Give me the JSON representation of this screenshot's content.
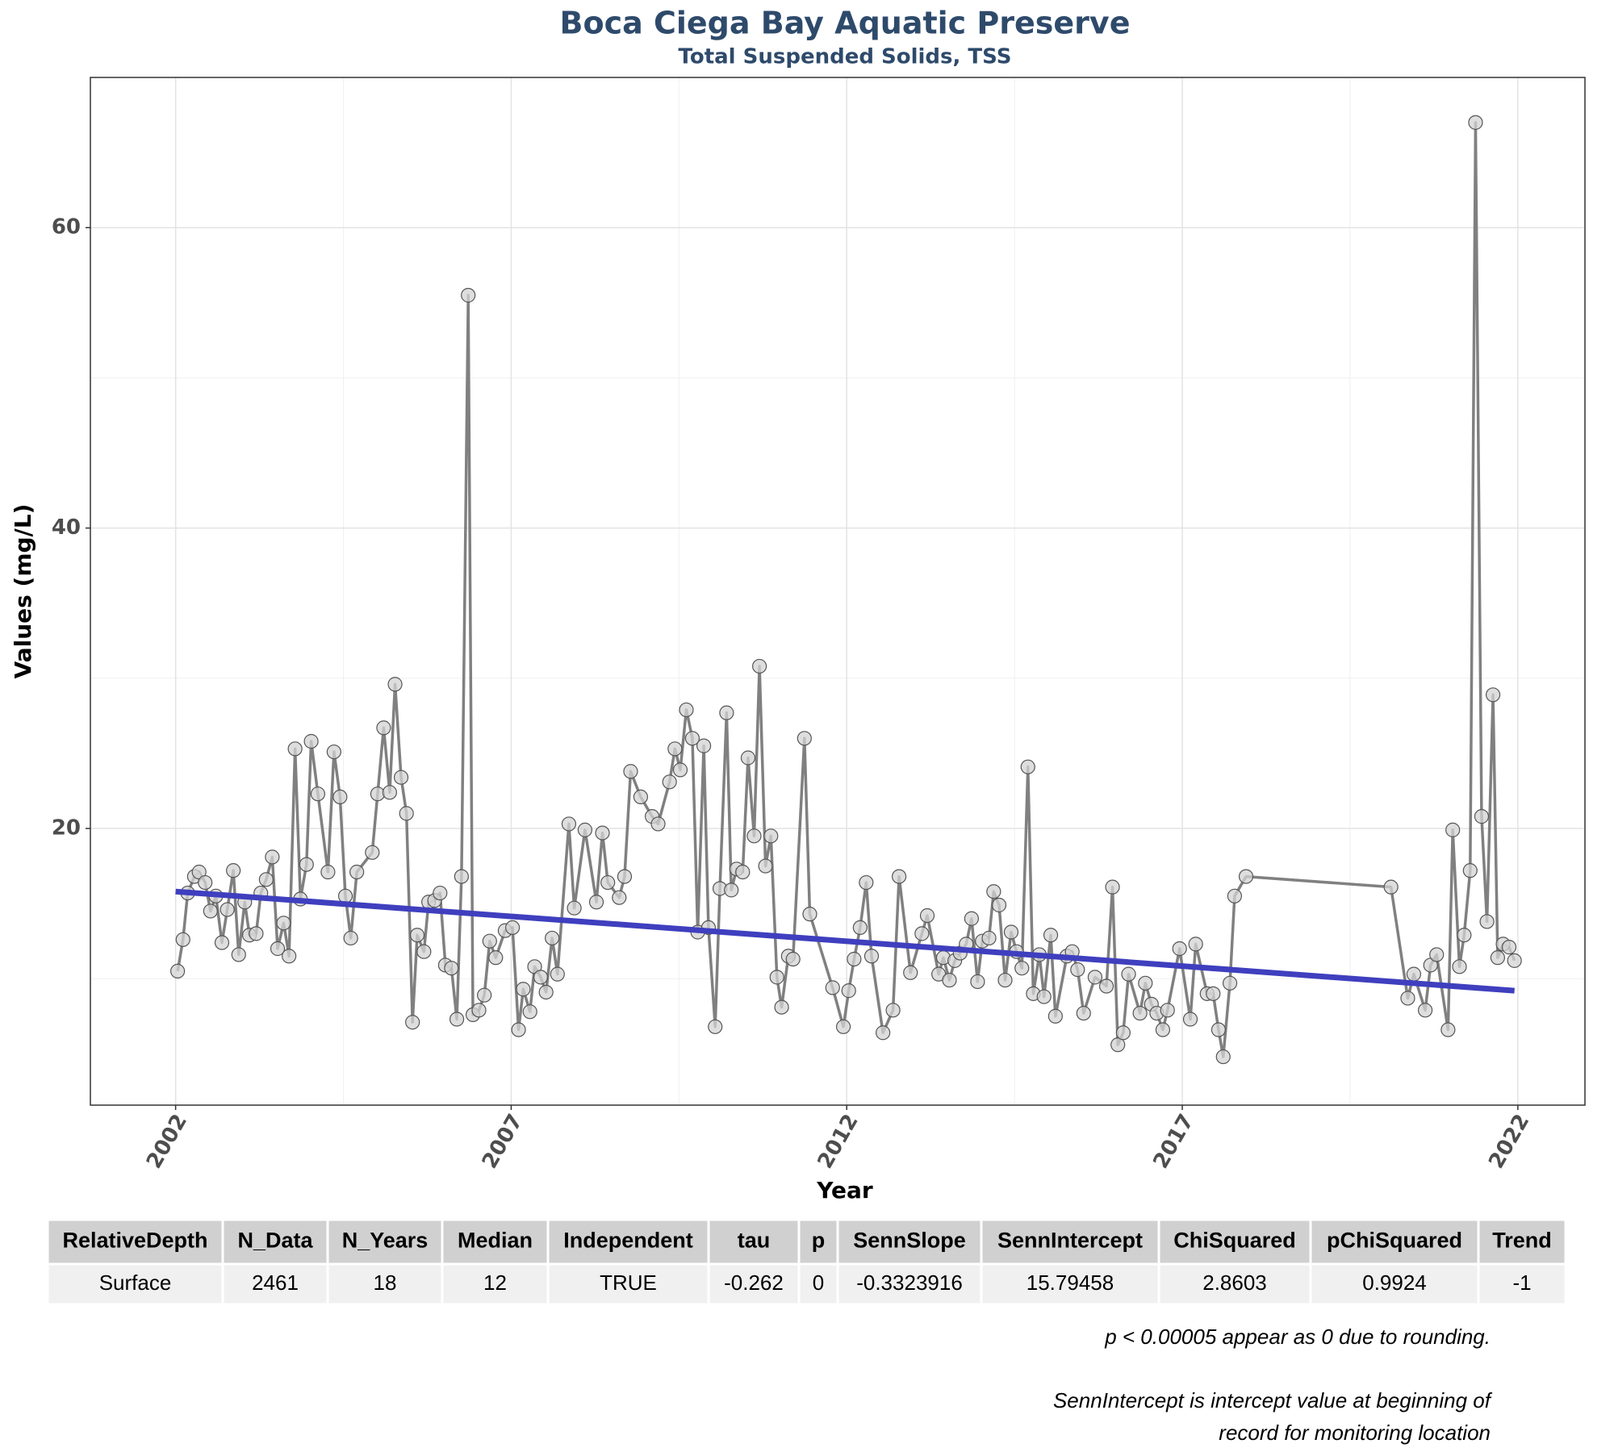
{
  "chart_data": {
    "type": "line",
    "title": "Boca Ciega Bay Aquatic Preserve",
    "subtitle": "Total Suspended Solids, TSS",
    "x_label": "Year",
    "y_label": "Values (mg/L)",
    "xlim": [
      2000.73,
      2023.0
    ],
    "xticks": [
      2002,
      2007,
      2012,
      2017,
      2022
    ],
    "minor_xticks": [
      2004.5,
      2009.5,
      2014.5,
      2019.5
    ],
    "ylim": [
      1.58,
      70.0
    ],
    "yticks": [
      20,
      40,
      60
    ],
    "minor_yticks": [
      10,
      30,
      50
    ],
    "grid": true,
    "x": [
      2002.03,
      2002.11,
      2002.18,
      2002.28,
      2002.35,
      2002.44,
      2002.52,
      2002.6,
      2002.69,
      2002.77,
      2002.86,
      2002.94,
      2003.03,
      2003.1,
      2003.2,
      2003.27,
      2003.35,
      2003.44,
      2003.52,
      2003.61,
      2003.69,
      2003.78,
      2003.86,
      2003.95,
      2004.02,
      2004.12,
      2004.27,
      2004.36,
      2004.45,
      2004.53,
      2004.61,
      2004.7,
      2004.93,
      2005.01,
      2005.1,
      2005.19,
      2005.27,
      2005.36,
      2005.44,
      2005.53,
      2005.6,
      2005.7,
      2005.77,
      2005.86,
      2005.94,
      2006.02,
      2006.11,
      2006.19,
      2006.26,
      2006.36,
      2006.43,
      2006.52,
      2006.6,
      2006.68,
      2006.77,
      2006.91,
      2007.02,
      2007.11,
      2007.18,
      2007.28,
      2007.35,
      2007.44,
      2007.52,
      2007.61,
      2007.69,
      2007.86,
      2007.94,
      2008.1,
      2008.27,
      2008.36,
      2008.44,
      2008.61,
      2008.69,
      2008.78,
      2008.93,
      2009.1,
      2009.19,
      2009.36,
      2009.44,
      2009.52,
      2009.61,
      2009.7,
      2009.78,
      2009.87,
      2009.94,
      2010.04,
      2010.11,
      2010.21,
      2010.28,
      2010.36,
      2010.45,
      2010.53,
      2010.62,
      2010.7,
      2010.79,
      2010.87,
      2010.96,
      2011.03,
      2011.13,
      2011.2,
      2011.37,
      2011.45,
      2011.79,
      2011.95,
      2012.03,
      2012.11,
      2012.2,
      2012.29,
      2012.37,
      2012.54,
      2012.69,
      2012.78,
      2012.95,
      2013.12,
      2013.2,
      2013.37,
      2013.44,
      2013.53,
      2013.61,
      2013.69,
      2013.78,
      2013.86,
      2013.95,
      2014.02,
      2014.12,
      2014.19,
      2014.27,
      2014.36,
      2014.45,
      2014.53,
      2014.61,
      2014.7,
      2014.78,
      2014.87,
      2014.94,
      2015.04,
      2015.11,
      2015.28,
      2015.36,
      2015.44,
      2015.53,
      2015.7,
      2015.87,
      2015.96,
      2016.04,
      2016.12,
      2016.2,
      2016.37,
      2016.45,
      2016.54,
      2016.62,
      2016.71,
      2016.78,
      2016.96,
      2017.12,
      2017.2,
      2017.37,
      2017.46,
      2017.54,
      2017.61,
      2017.71,
      2017.78,
      2017.95,
      2020.11,
      2020.36,
      2020.45,
      2020.62,
      2020.7,
      2020.79,
      2020.96,
      2021.03,
      2021.13,
      2021.2,
      2021.29,
      2021.37,
      2021.46,
      2021.54,
      2021.63,
      2021.7,
      2021.78,
      2021.87,
      2021.95
    ],
    "series": [
      {
        "color": "#808080",
        "marker_color": "#d3d3d3",
        "values": [
          10.5,
          12.6,
          15.7,
          16.8,
          17.1,
          16.4,
          14.5,
          15.5,
          12.4,
          14.6,
          17.2,
          11.6,
          15.1,
          12.9,
          13.0,
          15.7,
          16.6,
          18.1,
          12.0,
          13.7,
          11.5,
          25.3,
          15.3,
          17.6,
          25.8,
          22.3,
          17.1,
          25.1,
          22.1,
          15.5,
          12.7,
          17.1,
          18.4,
          22.3,
          26.7,
          22.4,
          29.6,
          23.4,
          21.0,
          7.1,
          12.9,
          11.8,
          15.1,
          15.2,
          15.7,
          10.9,
          10.7,
          7.3,
          16.8,
          55.5,
          7.6,
          7.9,
          8.9,
          12.5,
          11.4,
          13.2,
          13.4,
          6.6,
          9.3,
          7.8,
          10.8,
          10.1,
          9.1,
          12.7,
          10.3,
          20.3,
          14.7,
          19.9,
          15.1,
          19.7,
          16.4,
          15.4,
          16.8,
          23.8,
          22.1,
          20.8,
          20.3,
          23.1,
          25.3,
          23.9,
          27.9,
          26.0,
          13.1,
          25.5,
          13.4,
          6.8,
          16.0,
          27.7,
          15.9,
          17.3,
          17.1,
          24.7,
          19.5,
          30.8,
          17.5,
          19.5,
          10.1,
          8.1,
          11.5,
          11.3,
          26.0,
          14.3,
          9.4,
          6.8,
          9.2,
          11.3,
          13.4,
          16.4,
          11.5,
          6.4,
          7.9,
          16.8,
          10.4,
          13.0,
          14.2,
          10.3,
          11.4,
          9.9,
          11.2,
          11.7,
          12.3,
          14.0,
          9.8,
          12.5,
          12.7,
          15.8,
          14.9,
          9.9,
          13.1,
          11.8,
          10.7,
          24.1,
          9.0,
          11.6,
          8.8,
          12.9,
          7.5,
          11.5,
          11.8,
          10.6,
          7.7,
          10.1,
          9.5,
          16.1,
          5.6,
          6.4,
          10.3,
          7.7,
          9.7,
          8.3,
          7.7,
          6.6,
          7.9,
          12.0,
          7.3,
          12.3,
          9.0,
          9.0,
          6.6,
          4.8,
          9.7,
          15.5,
          16.8,
          16.1,
          8.7,
          10.3,
          7.9,
          10.9,
          11.6,
          6.6,
          19.9,
          10.8,
          12.9,
          17.2,
          67.0,
          20.8,
          13.8,
          28.9,
          11.4,
          12.3,
          12.1,
          11.2
        ]
      }
    ],
    "trend": {
      "color": "#3f3fbf",
      "x": [
        2002.0,
        2021.95
      ],
      "values": [
        15.8,
        9.2
      ]
    }
  },
  "table": {
    "header": [
      "RelativeDepth",
      "N_Data",
      "N_Years",
      "Median",
      "Independent",
      "tau",
      "p",
      "SennSlope",
      "SennIntercept",
      "ChiSquared",
      "pChiSquared",
      "Trend"
    ],
    "rows": [
      [
        "Surface",
        "2461",
        "18",
        "12",
        "TRUE",
        "-0.262",
        "0",
        "-0.3323916",
        "15.79458",
        "2.8603",
        "0.9924",
        "-1"
      ]
    ]
  },
  "notes": [
    "p < 0.00005 appear as 0 due to rounding.",
    "SennIntercept is intercept value at beginning of",
    "record for monitoring location"
  ]
}
